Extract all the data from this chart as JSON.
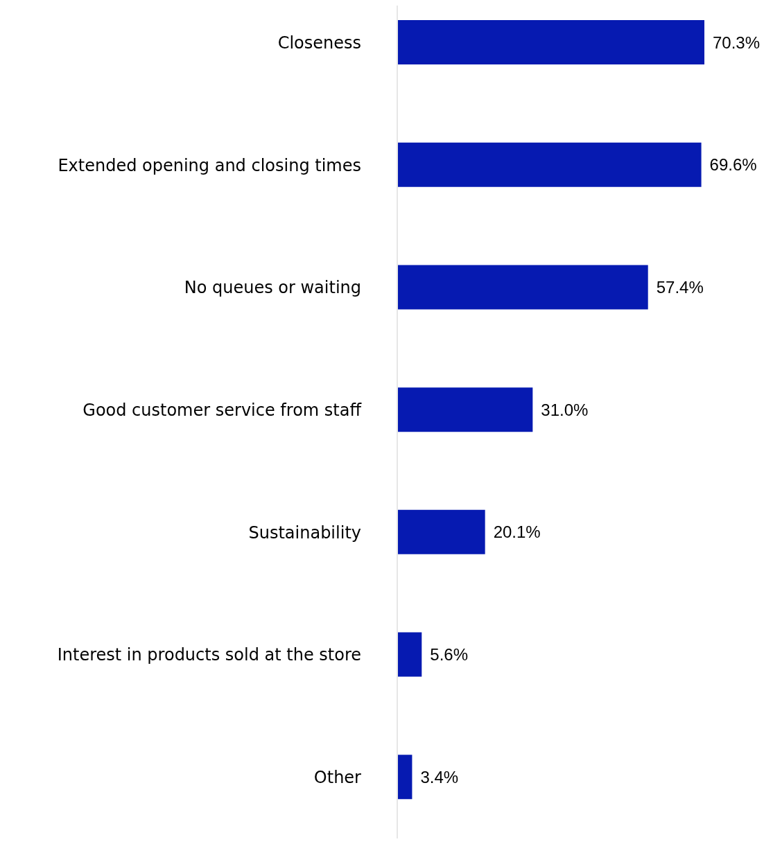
{
  "chart_data": {
    "type": "bar",
    "orientation": "horizontal",
    "categories": [
      "Closeness",
      "Extended opening and closing times",
      "No queues or waiting",
      "Good customer service from staff",
      "Sustainability",
      "Interest in products sold at the store",
      "Other"
    ],
    "values": [
      70.3,
      69.6,
      57.4,
      31.0,
      20.1,
      5.6,
      3.4
    ],
    "value_labels": [
      "70.3%",
      "69.6%",
      "57.4%",
      "31.0%",
      "20.1%",
      "5.6%",
      "3.4%"
    ],
    "color": "#061ab1",
    "tick_labels": "y",
    "grid": false
  }
}
